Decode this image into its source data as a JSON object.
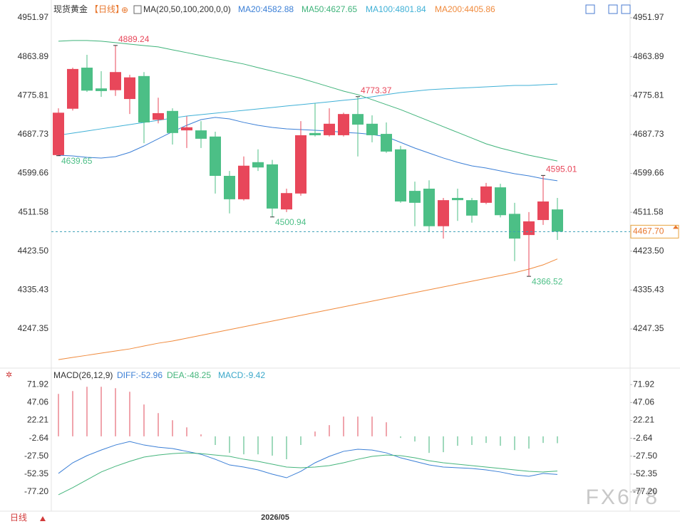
{
  "chart_data": [
    {
      "type": "candlestick",
      "title": "现货黄金",
      "period": "【日线】",
      "indicator": "MA(20,50,100,200,0,0)",
      "legend": [
        "MA20:4582.88",
        "MA50:4627.65",
        "MA100:4801.84",
        "MA200:4405.86"
      ],
      "up_color": "#e8475a",
      "down_color": "#4cbf86",
      "categories": [
        null,
        null,
        null,
        null,
        null,
        null,
        null,
        null,
        null,
        null,
        null,
        null,
        null,
        null,
        null,
        "2026/05",
        null,
        null,
        null,
        null,
        null,
        null,
        null,
        null,
        null,
        null,
        null,
        null,
        null,
        null,
        null,
        null,
        null,
        null,
        null,
        null
      ],
      "open": [
        4641,
        4746,
        4839,
        4792,
        4788,
        4768,
        4820,
        4721,
        4741,
        4697,
        4697,
        4683,
        4594,
        4541,
        4625,
        4620,
        4518,
        4554,
        4691,
        4686,
        4686,
        4734,
        4712,
        4689,
        4654,
        4560,
        4565,
        4480,
        4544,
        4539,
        4533,
        4568,
        4508,
        4460,
        4494,
        4518
      ],
      "high": [
        4747,
        4839,
        4868,
        4831,
        4889.24,
        4823,
        4829,
        4771,
        4747,
        4729,
        4718,
        4694,
        4605,
        4638,
        4654,
        4630,
        4565,
        4718,
        4758,
        4747,
        4737,
        4773.37,
        4731,
        4715,
        4662,
        4581,
        4584,
        4544,
        4565,
        4544,
        4578,
        4576,
        4533,
        4512,
        4595.01,
        4544
      ],
      "low": [
        4639.65,
        4742,
        4784,
        4773,
        4775,
        4734,
        4668,
        4713,
        4665,
        4657,
        4657,
        4554,
        4509,
        4538,
        4605,
        4500.94,
        4512,
        4549,
        4683,
        4683,
        4683,
        4638,
        4670,
        4646,
        4533,
        4480,
        4467,
        4452,
        4492,
        4488,
        4530,
        4500,
        4401,
        4366.52,
        4483,
        4449
      ],
      "close": [
        4737,
        4836,
        4787,
        4786,
        4829,
        4817,
        4715,
        4736,
        4691,
        4704,
        4678,
        4594,
        4541,
        4617,
        4613,
        4520,
        4555,
        4686,
        4686,
        4712,
        4734,
        4710,
        4686,
        4649,
        4536,
        4533,
        4480,
        4539,
        4539,
        4504,
        4570,
        4505,
        4452,
        4491,
        4536,
        4467.7
      ],
      "last_price": {
        "value": 4467.7,
        "label": "4467.70"
      },
      "series": [
        {
          "name": "MA20",
          "color": "#3b7fd6",
          "values": [
            4640.8,
            4639.2,
            4636.0,
            4634.4,
            4637.6,
            4647.2,
            4661.7,
            4677.9,
            4694.0,
            4708.5,
            4721.4,
            4726.3,
            4723.0,
            4715.0,
            4708.5,
            4703.7,
            4700.4,
            4698.8,
            4697.2,
            4695.6,
            4692.4,
            4690.8,
            4687.6,
            4682.7,
            4669.8,
            4656.9,
            4645.6,
            4634.4,
            4624.7,
            4616.6,
            4611.8,
            4605.3,
            4598.9,
            4594.0,
            4587.6,
            4582.88
          ]
        },
        {
          "name": "MA50",
          "color": "#3fb37a",
          "values": [
            4898.8,
            4900.4,
            4900.4,
            4898.8,
            4895.6,
            4892.3,
            4889.1,
            4885.9,
            4879.4,
            4873.0,
            4866.5,
            4860.1,
            4853.6,
            4847.2,
            4839.1,
            4831.1,
            4823.0,
            4814.9,
            4805.3,
            4795.6,
            4785.9,
            4777.9,
            4766.6,
            4755.3,
            4744.0,
            4731.1,
            4718.2,
            4705.3,
            4692.4,
            4679.5,
            4666.6,
            4656.9,
            4648.9,
            4640.8,
            4634.4,
            4627.65
          ]
        },
        {
          "name": "MA100",
          "color": "#3fb0d6",
          "values": [
            4686.0,
            4690.8,
            4695.6,
            4700.5,
            4705.3,
            4710.1,
            4715.0,
            4719.8,
            4724.7,
            4729.5,
            4732.7,
            4735.9,
            4739.2,
            4742.4,
            4745.6,
            4748.8,
            4752.1,
            4755.3,
            4758.5,
            4761.7,
            4765.0,
            4768.2,
            4773.0,
            4777.9,
            4782.7,
            4785.9,
            4789.1,
            4790.8,
            4792.4,
            4794.0,
            4795.6,
            4797.2,
            4798.8,
            4798.8,
            4800.4,
            4801.84
          ]
        },
        {
          "name": "MA200",
          "color": "#f08a3c",
          "values": [
            4178.0,
            4182.9,
            4187.7,
            4192.6,
            4197.4,
            4202.2,
            4208.7,
            4215.1,
            4220.0,
            4226.4,
            4232.9,
            4239.3,
            4245.8,
            4252.2,
            4258.7,
            4265.1,
            4271.6,
            4278.0,
            4284.5,
            4290.9,
            4297.4,
            4303.8,
            4310.3,
            4316.7,
            4323.2,
            4329.6,
            4336.1,
            4342.5,
            4349.0,
            4355.4,
            4361.9,
            4368.3,
            4374.8,
            4382.8,
            4392.5,
            4405.86
          ]
        }
      ],
      "ylim": [
        4162,
        4968
      ],
      "yticks": [
        4951.97,
        4863.89,
        4775.81,
        4687.73,
        4599.66,
        4511.58,
        {
          "value": 4423.5,
          "label": "4423.50"
        },
        4335.43,
        4247.35
      ]
    },
    {
      "type": "macd",
      "title": "MACD(26,12,9)",
      "legend": [
        "DIFF:-52.96",
        "DEA:-48.25",
        "MACD:-9.42"
      ],
      "series": [
        {
          "name": "DIFF",
          "color": "#3b7fd6",
          "values": [
            -51.5,
            -36.7,
            -26.8,
            -19.0,
            -12.0,
            -7.1,
            -12.0,
            -15.0,
            -16.9,
            -20.8,
            -24.9,
            -31.8,
            -39.7,
            -42.6,
            -46.6,
            -52.5,
            -57.5,
            -48.6,
            -36.7,
            -27.8,
            -20.8,
            -17.9,
            -19.0,
            -22.9,
            -29.8,
            -34.7,
            -39.7,
            -42.6,
            -43.6,
            -44.6,
            -46.6,
            -49.5,
            -53.5,
            -55.5,
            -51.5,
            -52.96
          ]
        },
        {
          "name": "DEA",
          "color": "#45b57c",
          "values": [
            -81.2,
            -71.3,
            -60.4,
            -49.5,
            -41.6,
            -34.7,
            -28.8,
            -25.9,
            -23.9,
            -22.9,
            -23.9,
            -25.9,
            -27.8,
            -31.8,
            -34.7,
            -38.7,
            -42.6,
            -43.6,
            -42.6,
            -40.6,
            -36.7,
            -31.8,
            -27.8,
            -25.9,
            -26.8,
            -29.8,
            -33.8,
            -36.7,
            -38.7,
            -40.6,
            -42.6,
            -44.6,
            -46.6,
            -48.6,
            -49.5,
            -48.25
          ]
        },
        {
          "name": "MACD",
          "color": "#3aa7c9",
          "up_color": "#e04a5a",
          "down_color": "#3fb37a",
          "values": [
            59.1,
            63.0,
            69.0,
            69.0,
            67.0,
            62.0,
            44.3,
            32.4,
            22.5,
            12.6,
            2.8,
            -12.0,
            -22.9,
            -24.9,
            -24.9,
            -26.8,
            -31.8,
            -12.0,
            6.7,
            15.6,
            27.5,
            27.5,
            27.5,
            19.6,
            -2.2,
            -7.1,
            -22.9,
            -22.0,
            -13.1,
            -12.0,
            -9.1,
            -13.1,
            -19.0,
            -17.0,
            -9.1,
            -9.42
          ]
        }
      ],
      "ylim": [
        -104,
        90
      ],
      "yticks": [
        71.92,
        47.06,
        22.21,
        -2.64,
        {
          "value": -27.5,
          "label": "-27.50"
        },
        -52.35,
        {
          "value": -77.2,
          "label": "-77.20"
        }
      ]
    }
  ],
  "period_button": "日线",
  "watermark": "FX678"
}
